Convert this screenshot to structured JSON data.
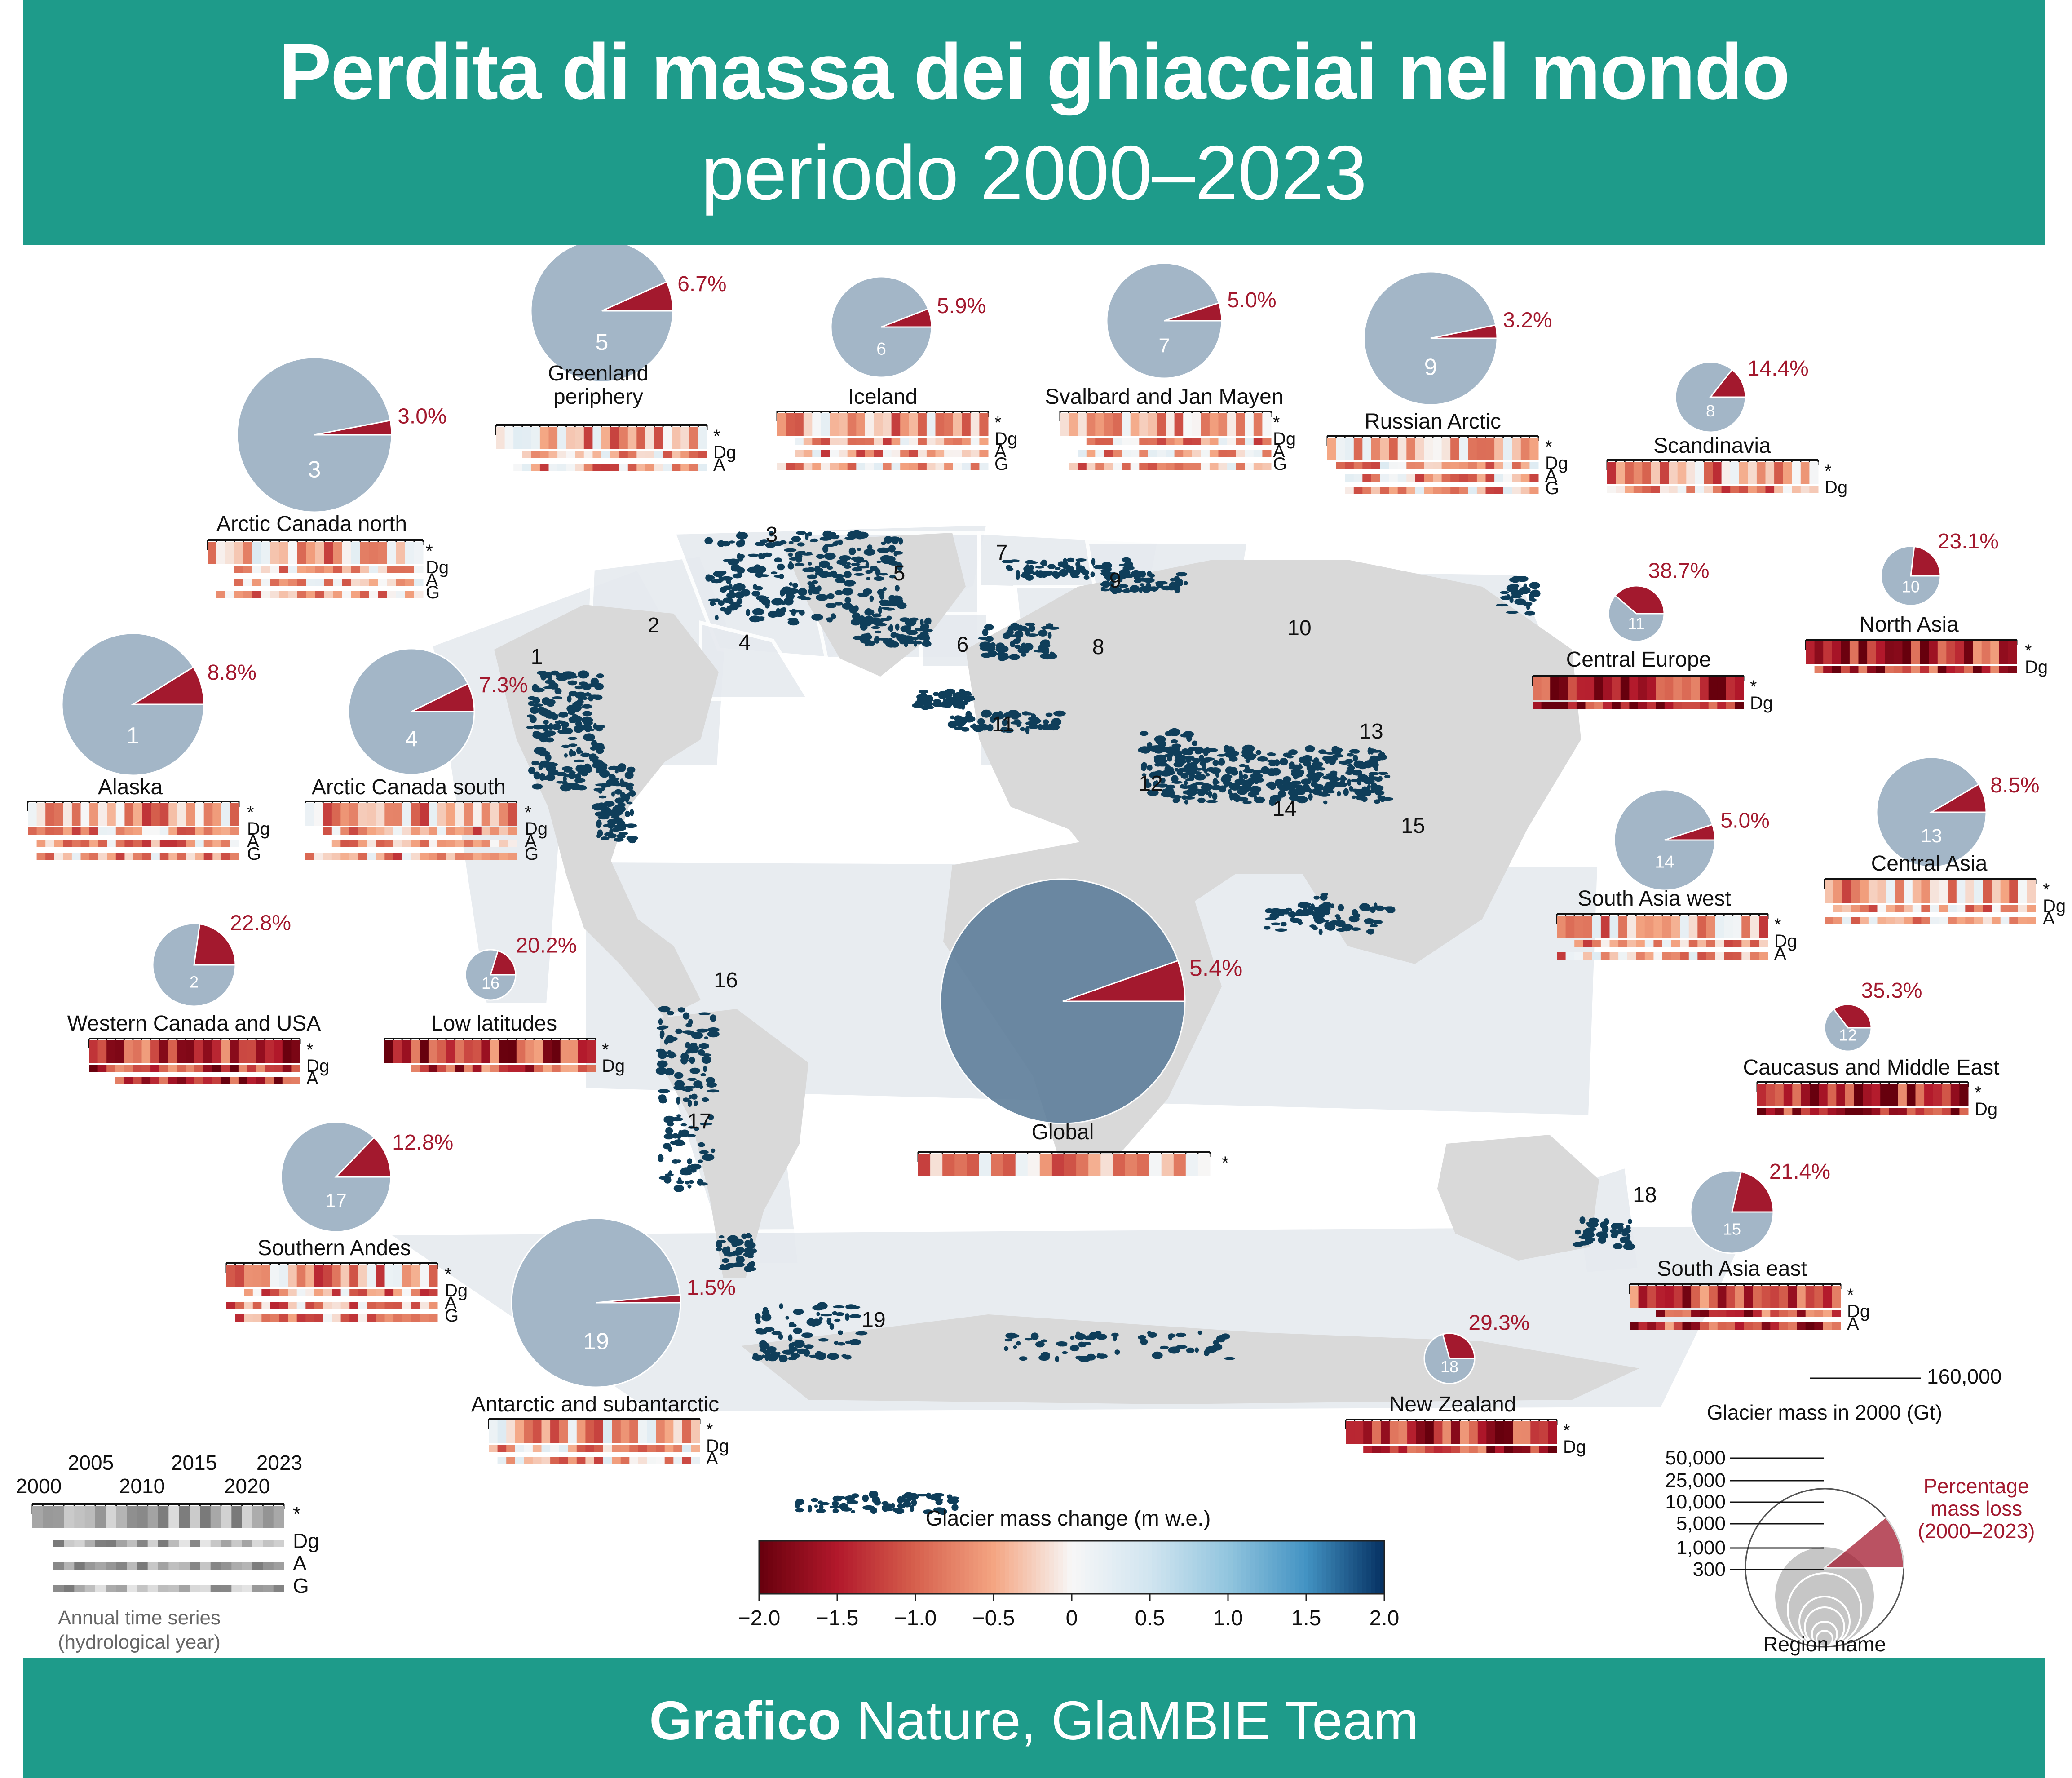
{
  "header": {
    "title": "Perdita di massa dei ghiacciai nel mondo",
    "subtitle": "periodo 2000–2023"
  },
  "footer": {
    "credit_bold": "Grafico",
    "credit_rest": " Nature, GlaMBIE Team"
  },
  "colors": {
    "teal": "#1e9b8a",
    "pie_base": "#a3b6c7",
    "pie_loss": "#a3192e",
    "pct_text": "#a3192e",
    "glacier": "#0f3e5a",
    "land": "#d8d8d8",
    "region_box": "#e8ecf0"
  },
  "regions": [
    {
      "id": "1",
      "name": "Alaska",
      "pct": "8.8%",
      "rows": [
        "*",
        "Dg",
        "A",
        "G"
      ]
    },
    {
      "id": "2",
      "name": "Western Canada and USA",
      "pct": "22.8%",
      "rows": [
        "*",
        "Dg",
        "A"
      ]
    },
    {
      "id": "3",
      "name": "Arctic Canada north",
      "pct": "3.0%",
      "rows": [
        "*",
        "Dg",
        "A",
        "G"
      ]
    },
    {
      "id": "4",
      "name": "Arctic Canada south",
      "pct": "7.3%",
      "rows": [
        "*",
        "Dg",
        "A",
        "G"
      ]
    },
    {
      "id": "5",
      "name": "Greenland\nperiphery",
      "pct": "6.7%",
      "rows": [
        "*",
        "Dg",
        "A"
      ]
    },
    {
      "id": "6",
      "name": "Iceland",
      "pct": "5.9%",
      "rows": [
        "*",
        "Dg",
        "A",
        "G"
      ]
    },
    {
      "id": "7",
      "name": "Svalbard and Jan Mayen",
      "pct": "5.0%",
      "rows": [
        "*",
        "Dg",
        "A",
        "G"
      ]
    },
    {
      "id": "8",
      "name": "Scandinavia",
      "pct": "14.4%",
      "rows": [
        "*",
        "Dg"
      ]
    },
    {
      "id": "9",
      "name": "Russian Arctic",
      "pct": "3.2%",
      "rows": [
        "*",
        "Dg",
        "A",
        "G"
      ]
    },
    {
      "id": "10",
      "name": "North Asia",
      "pct": "23.1%",
      "rows": [
        "*",
        "Dg"
      ]
    },
    {
      "id": "11",
      "name": "Central Europe",
      "pct": "38.7%",
      "rows": [
        "*",
        "Dg"
      ]
    },
    {
      "id": "12",
      "name": "Caucasus and Middle East",
      "pct": "35.3%",
      "rows": [
        "*",
        "Dg"
      ]
    },
    {
      "id": "13",
      "name": "Central Asia",
      "pct": "8.5%",
      "rows": [
        "*",
        "Dg",
        "A"
      ]
    },
    {
      "id": "14",
      "name": "South Asia west",
      "pct": "5.0%",
      "rows": [
        "*",
        "Dg",
        "A"
      ]
    },
    {
      "id": "15",
      "name": "South Asia east",
      "pct": "21.4%",
      "rows": [
        "*",
        "Dg",
        "A"
      ]
    },
    {
      "id": "16",
      "name": "Low latitudes",
      "pct": "20.2%",
      "rows": [
        "*",
        "Dg"
      ]
    },
    {
      "id": "17",
      "name": "Southern Andes",
      "pct": "12.8%",
      "rows": [
        "*",
        "Dg",
        "A",
        "G"
      ]
    },
    {
      "id": "18",
      "name": "New Zealand",
      "pct": "29.3%",
      "rows": [
        "*",
        "Dg"
      ]
    },
    {
      "id": "19",
      "name": "Antarctic and subantarctic",
      "pct": "1.5%",
      "rows": [
        "*",
        "Dg",
        "A"
      ]
    },
    {
      "id": "global",
      "name": "Global",
      "pct": "5.4%",
      "rows": [
        "*"
      ]
    }
  ],
  "map_labels": [
    "1",
    "2",
    "3",
    "4",
    "5",
    "6",
    "7",
    "8",
    "9",
    "10",
    "11",
    "12",
    "13",
    "14",
    "15",
    "16",
    "17",
    "18",
    "19"
  ],
  "time_legend": {
    "years_top": [
      "2005",
      "2015",
      "2023"
    ],
    "years_bottom": [
      "2000",
      "2010",
      "2020"
    ],
    "rows": [
      "*",
      "Dg",
      "A",
      "G"
    ],
    "caption_line1": "Annual time series",
    "caption_line2": "(hydrological year)"
  },
  "colorbar": {
    "title": "Glacier mass change (m w.e.)",
    "ticks": [
      "−2.0",
      "−1.5",
      "−1.0",
      "−0.5",
      "0",
      "0.5",
      "1.0",
      "1.5",
      "2.0"
    ],
    "min": -2.0,
    "max": 2.0
  },
  "size_legend": {
    "max_label": "160,000",
    "title": "Glacier mass in 2000 (Gt)",
    "values": [
      "50,000",
      "25,000",
      "10,000",
      "5,000",
      "1,000",
      "300"
    ],
    "pct_label_line1": "Percentage",
    "pct_label_line2": "mass loss",
    "pct_label_line3": "(2000–2023)",
    "region_label": "Region name"
  }
}
